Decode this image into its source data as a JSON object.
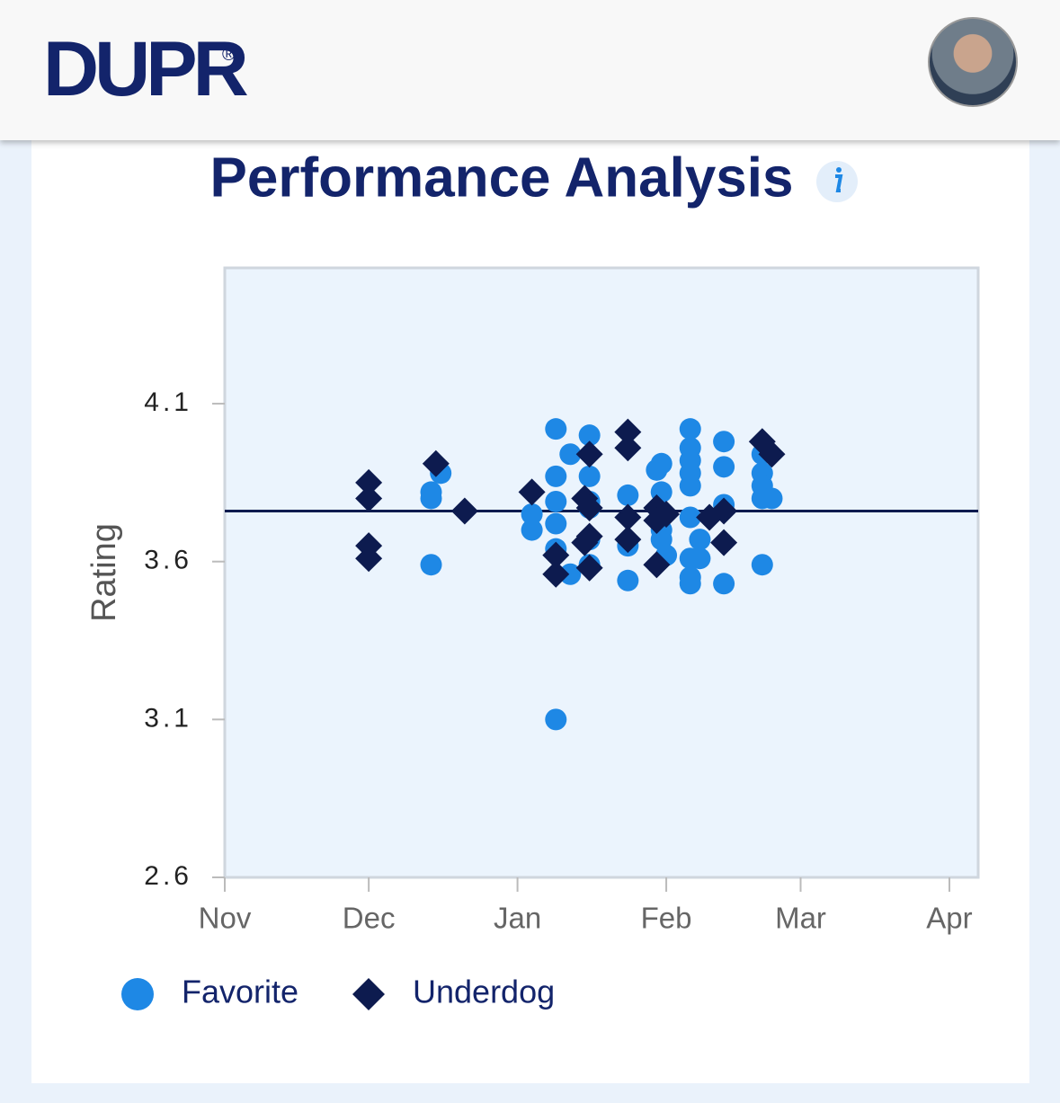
{
  "header": {
    "logo": "DUPR",
    "logo_mark": "®"
  },
  "chart_data": {
    "type": "scatter",
    "title": "Performance Analysis",
    "y_label": "Rating",
    "xlim": [
      0,
      157
    ],
    "xticks": [
      {
        "value": 0,
        "label": "Nov"
      },
      {
        "value": 30,
        "label": "Dec"
      },
      {
        "value": 61,
        "label": "Jan"
      },
      {
        "value": 92,
        "label": "Feb"
      },
      {
        "value": 120,
        "label": "Mar"
      },
      {
        "value": 151,
        "label": "Apr"
      }
    ],
    "ylim": [
      2.6,
      4.53
    ],
    "yticks": [
      2.6,
      3.1,
      3.6,
      4.1
    ],
    "reference_line": {
      "value": 3.76,
      "color": "#0d1b4f"
    },
    "legend": "bottom-left",
    "series": [
      {
        "name": "Favorite",
        "color": "#1e88e5",
        "marker": "circle",
        "x": [
          43,
          43,
          45,
          43,
          64,
          64,
          69,
          69,
          69,
          69,
          69,
          72,
          69,
          72,
          76,
          76,
          76,
          76,
          76,
          76,
          84,
          84,
          84,
          90,
          91,
          91,
          91,
          91,
          92,
          97,
          97,
          97,
          97,
          97,
          97,
          97,
          97,
          97,
          99,
          99,
          104,
          104,
          104,
          104,
          112,
          112,
          112,
          112,
          114,
          112
        ],
        "values": [
          3.82,
          3.8,
          3.88,
          3.59,
          3.75,
          3.7,
          4.02,
          3.87,
          3.79,
          3.72,
          3.64,
          3.56,
          3.1,
          3.94,
          4.0,
          3.87,
          3.79,
          3.67,
          3.59,
          3.77,
          3.81,
          3.65,
          3.54,
          3.89,
          3.91,
          3.82,
          3.7,
          3.67,
          3.62,
          4.02,
          3.96,
          3.92,
          3.88,
          3.84,
          3.74,
          3.55,
          3.53,
          3.61,
          3.67,
          3.61,
          3.98,
          3.9,
          3.78,
          3.53,
          3.94,
          3.88,
          3.84,
          3.8,
          3.8,
          3.59
        ]
      },
      {
        "name": "Underdog",
        "color": "#0d1b4f",
        "marker": "diamond",
        "x": [
          30,
          30,
          30,
          30,
          44,
          50,
          64,
          69,
          69,
          75,
          75,
          76,
          76,
          76,
          76,
          84,
          84,
          84,
          84,
          90,
          90,
          90,
          92,
          101,
          104,
          104,
          112,
          114
        ],
        "values": [
          3.85,
          3.8,
          3.65,
          3.61,
          3.91,
          3.76,
          3.82,
          3.62,
          3.56,
          3.8,
          3.66,
          3.94,
          3.58,
          3.68,
          3.77,
          4.01,
          3.96,
          3.74,
          3.67,
          3.77,
          3.73,
          3.59,
          3.75,
          3.74,
          3.76,
          3.66,
          3.98,
          3.94
        ]
      }
    ]
  }
}
